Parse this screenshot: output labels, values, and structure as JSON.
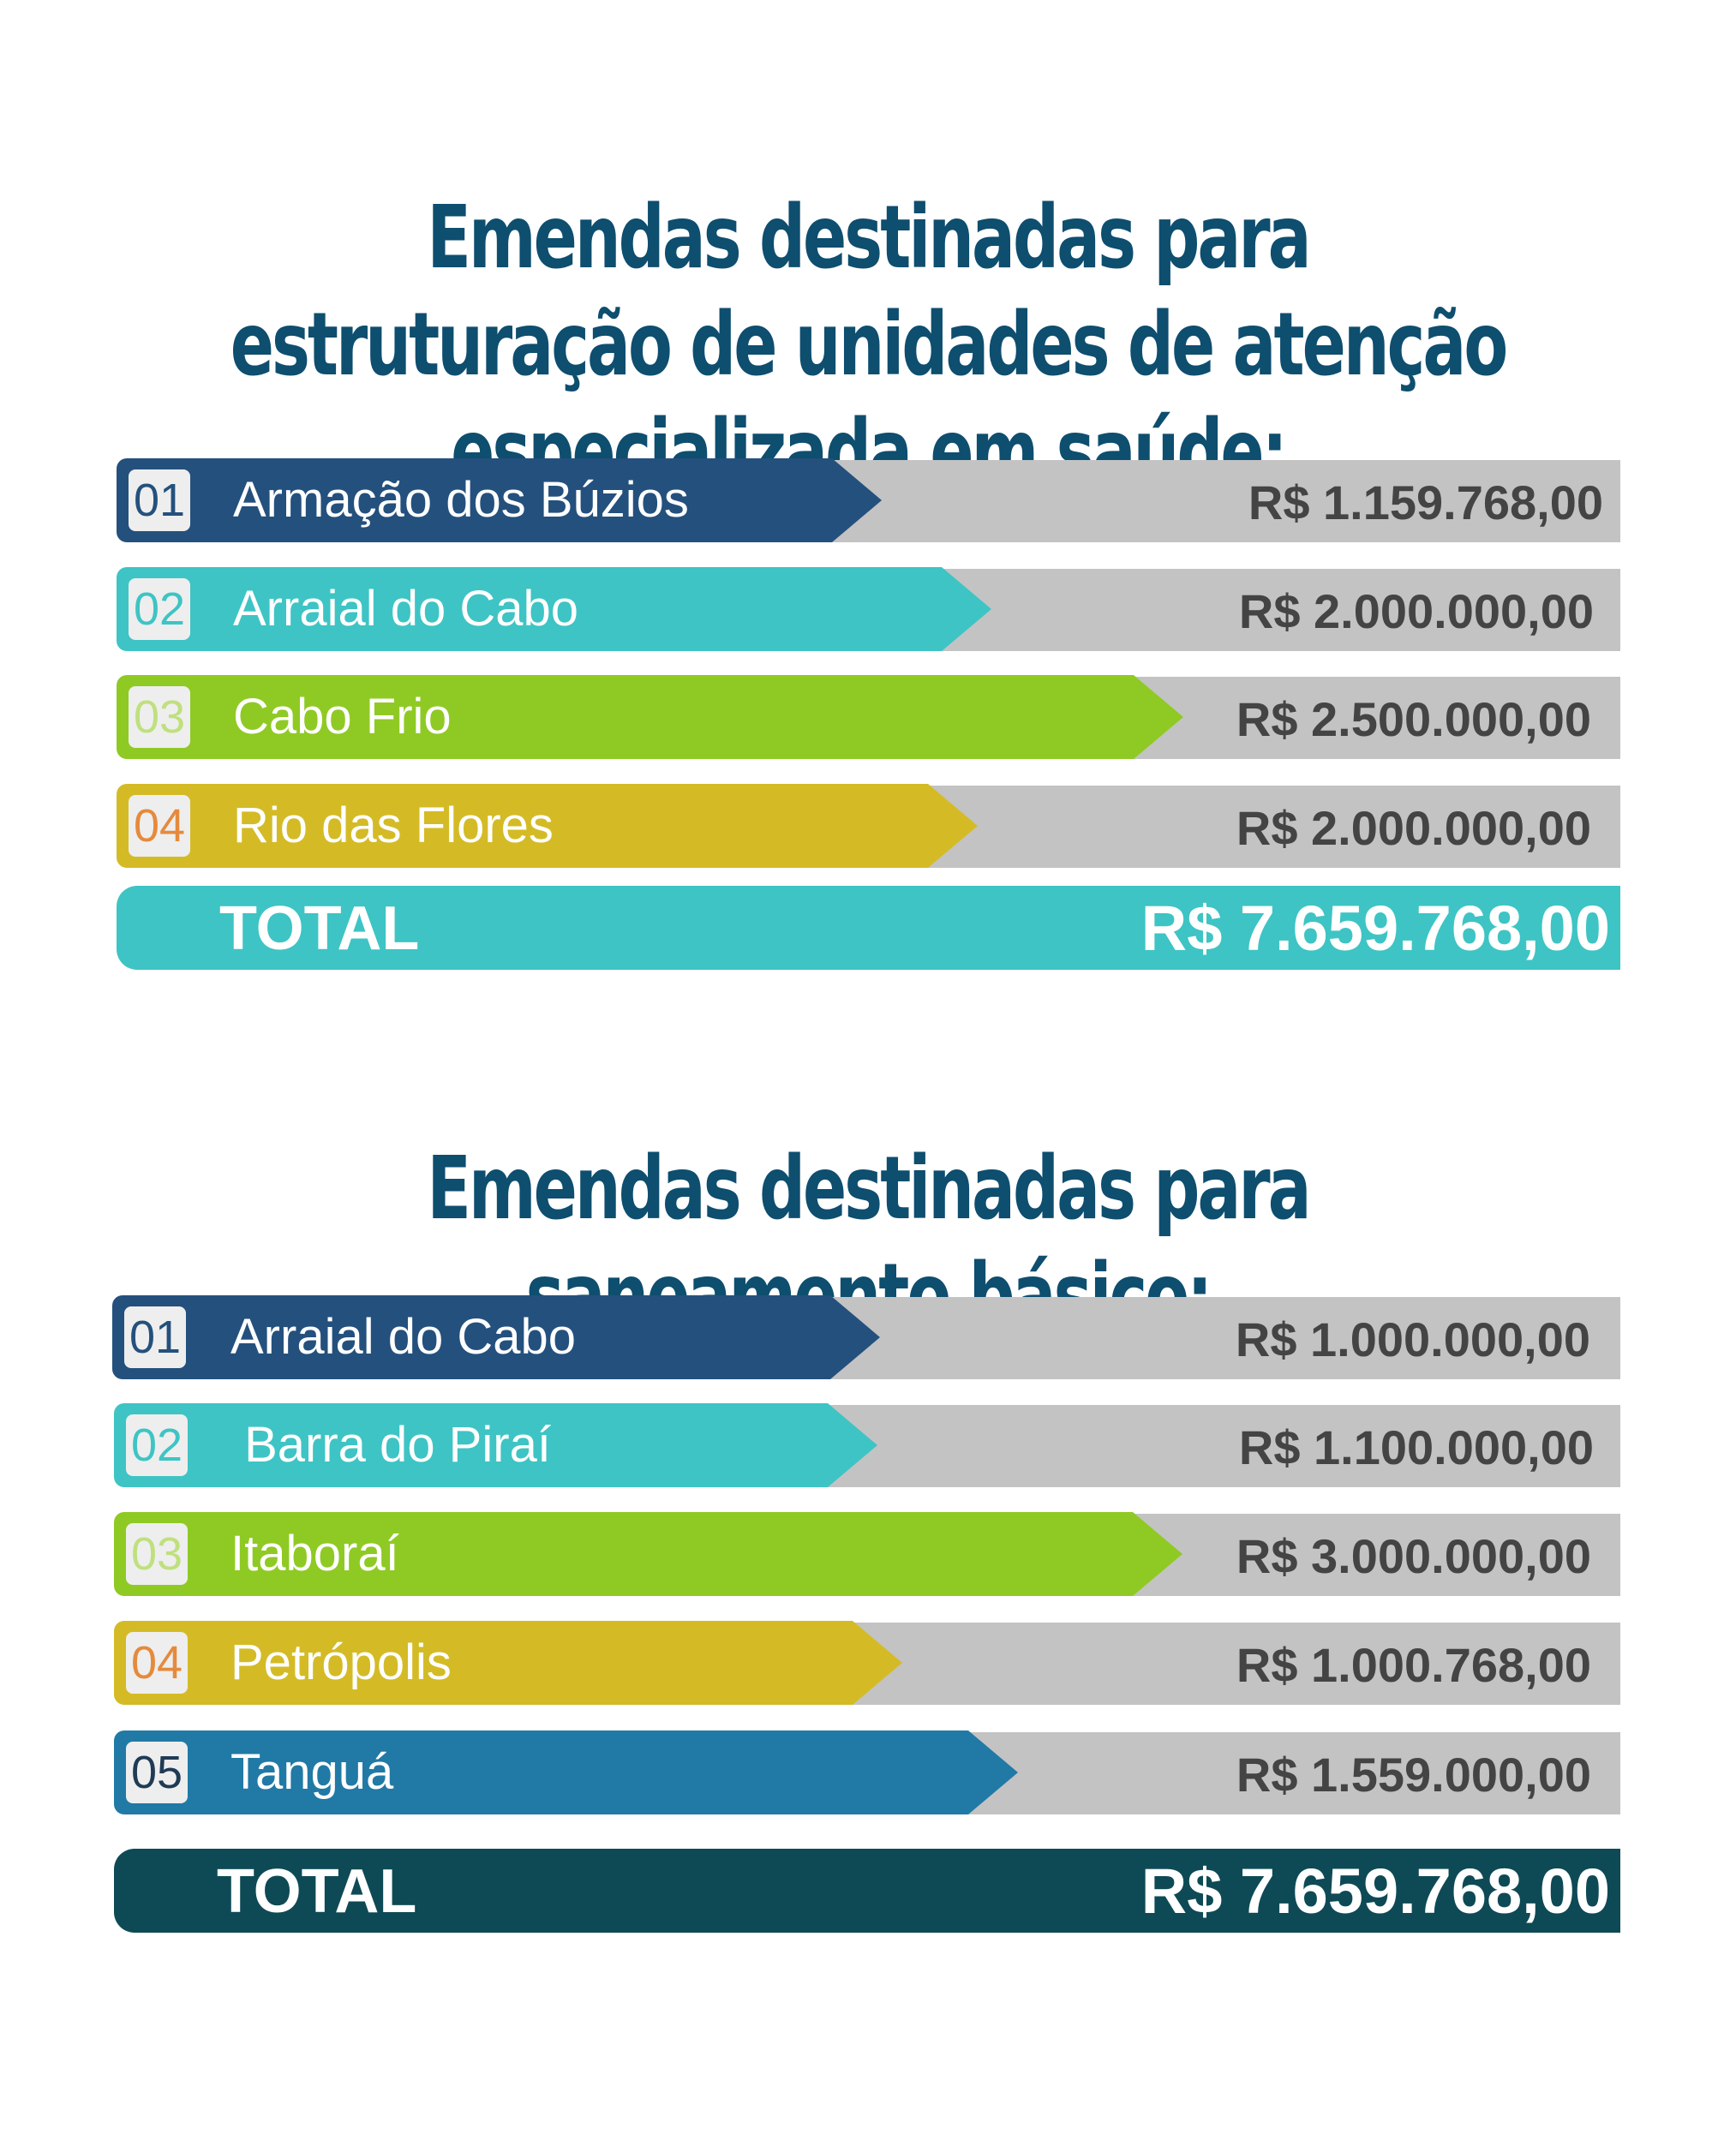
{
  "section1": {
    "title_line1": "Emendas destinadas para estruturação de unidades de atenção",
    "title_line2": "especializada em saúde:",
    "items": [
      {
        "num": "01",
        "name": "Armação dos Búzios",
        "amount": "R$ 1.159.768,00"
      },
      {
        "num": "02",
        "name": "Arraial do Cabo",
        "amount": "R$ 2.000.000,00"
      },
      {
        "num": "03",
        "name": "Cabo Frio",
        "amount": "R$ 2.500.000,00"
      },
      {
        "num": "04",
        "name": "Rio das Flores",
        "amount": "R$ 2.000.000,00"
      }
    ],
    "total_label": "TOTAL",
    "total_value": "R$ 7.659.768,00"
  },
  "section2": {
    "title": "Emendas destinadas para saneamento básico:",
    "items": [
      {
        "num": "01",
        "name": "Arraial do Cabo",
        "amount": "R$ 1.000.000,00"
      },
      {
        "num": "02",
        "name": " Barra do Piraí",
        "amount": "R$ 1.100.000,00"
      },
      {
        "num": "03",
        "name": "Itaboraí",
        "amount": "R$ 3.000.000,00"
      },
      {
        "num": "04",
        "name": "Petrópolis",
        "amount": "R$ 1.000.768,00"
      },
      {
        "num": "05",
        "name": "Tanguá",
        "amount": "R$ 1.559.000,00"
      }
    ],
    "total_label": "TOTAL",
    "total_value": "R$ 7.659.768,00"
  },
  "colors": {
    "title": "#0e4e6f",
    "navy": "#24507d",
    "teal": "#3ec4c4",
    "green": "#8fca24",
    "mustard": "#d4bb26",
    "blue": "#2179a6",
    "gray_band": "#c3c3c3",
    "dark_teal_total": "#0e4a55",
    "num_orange": "#e58a3c"
  }
}
